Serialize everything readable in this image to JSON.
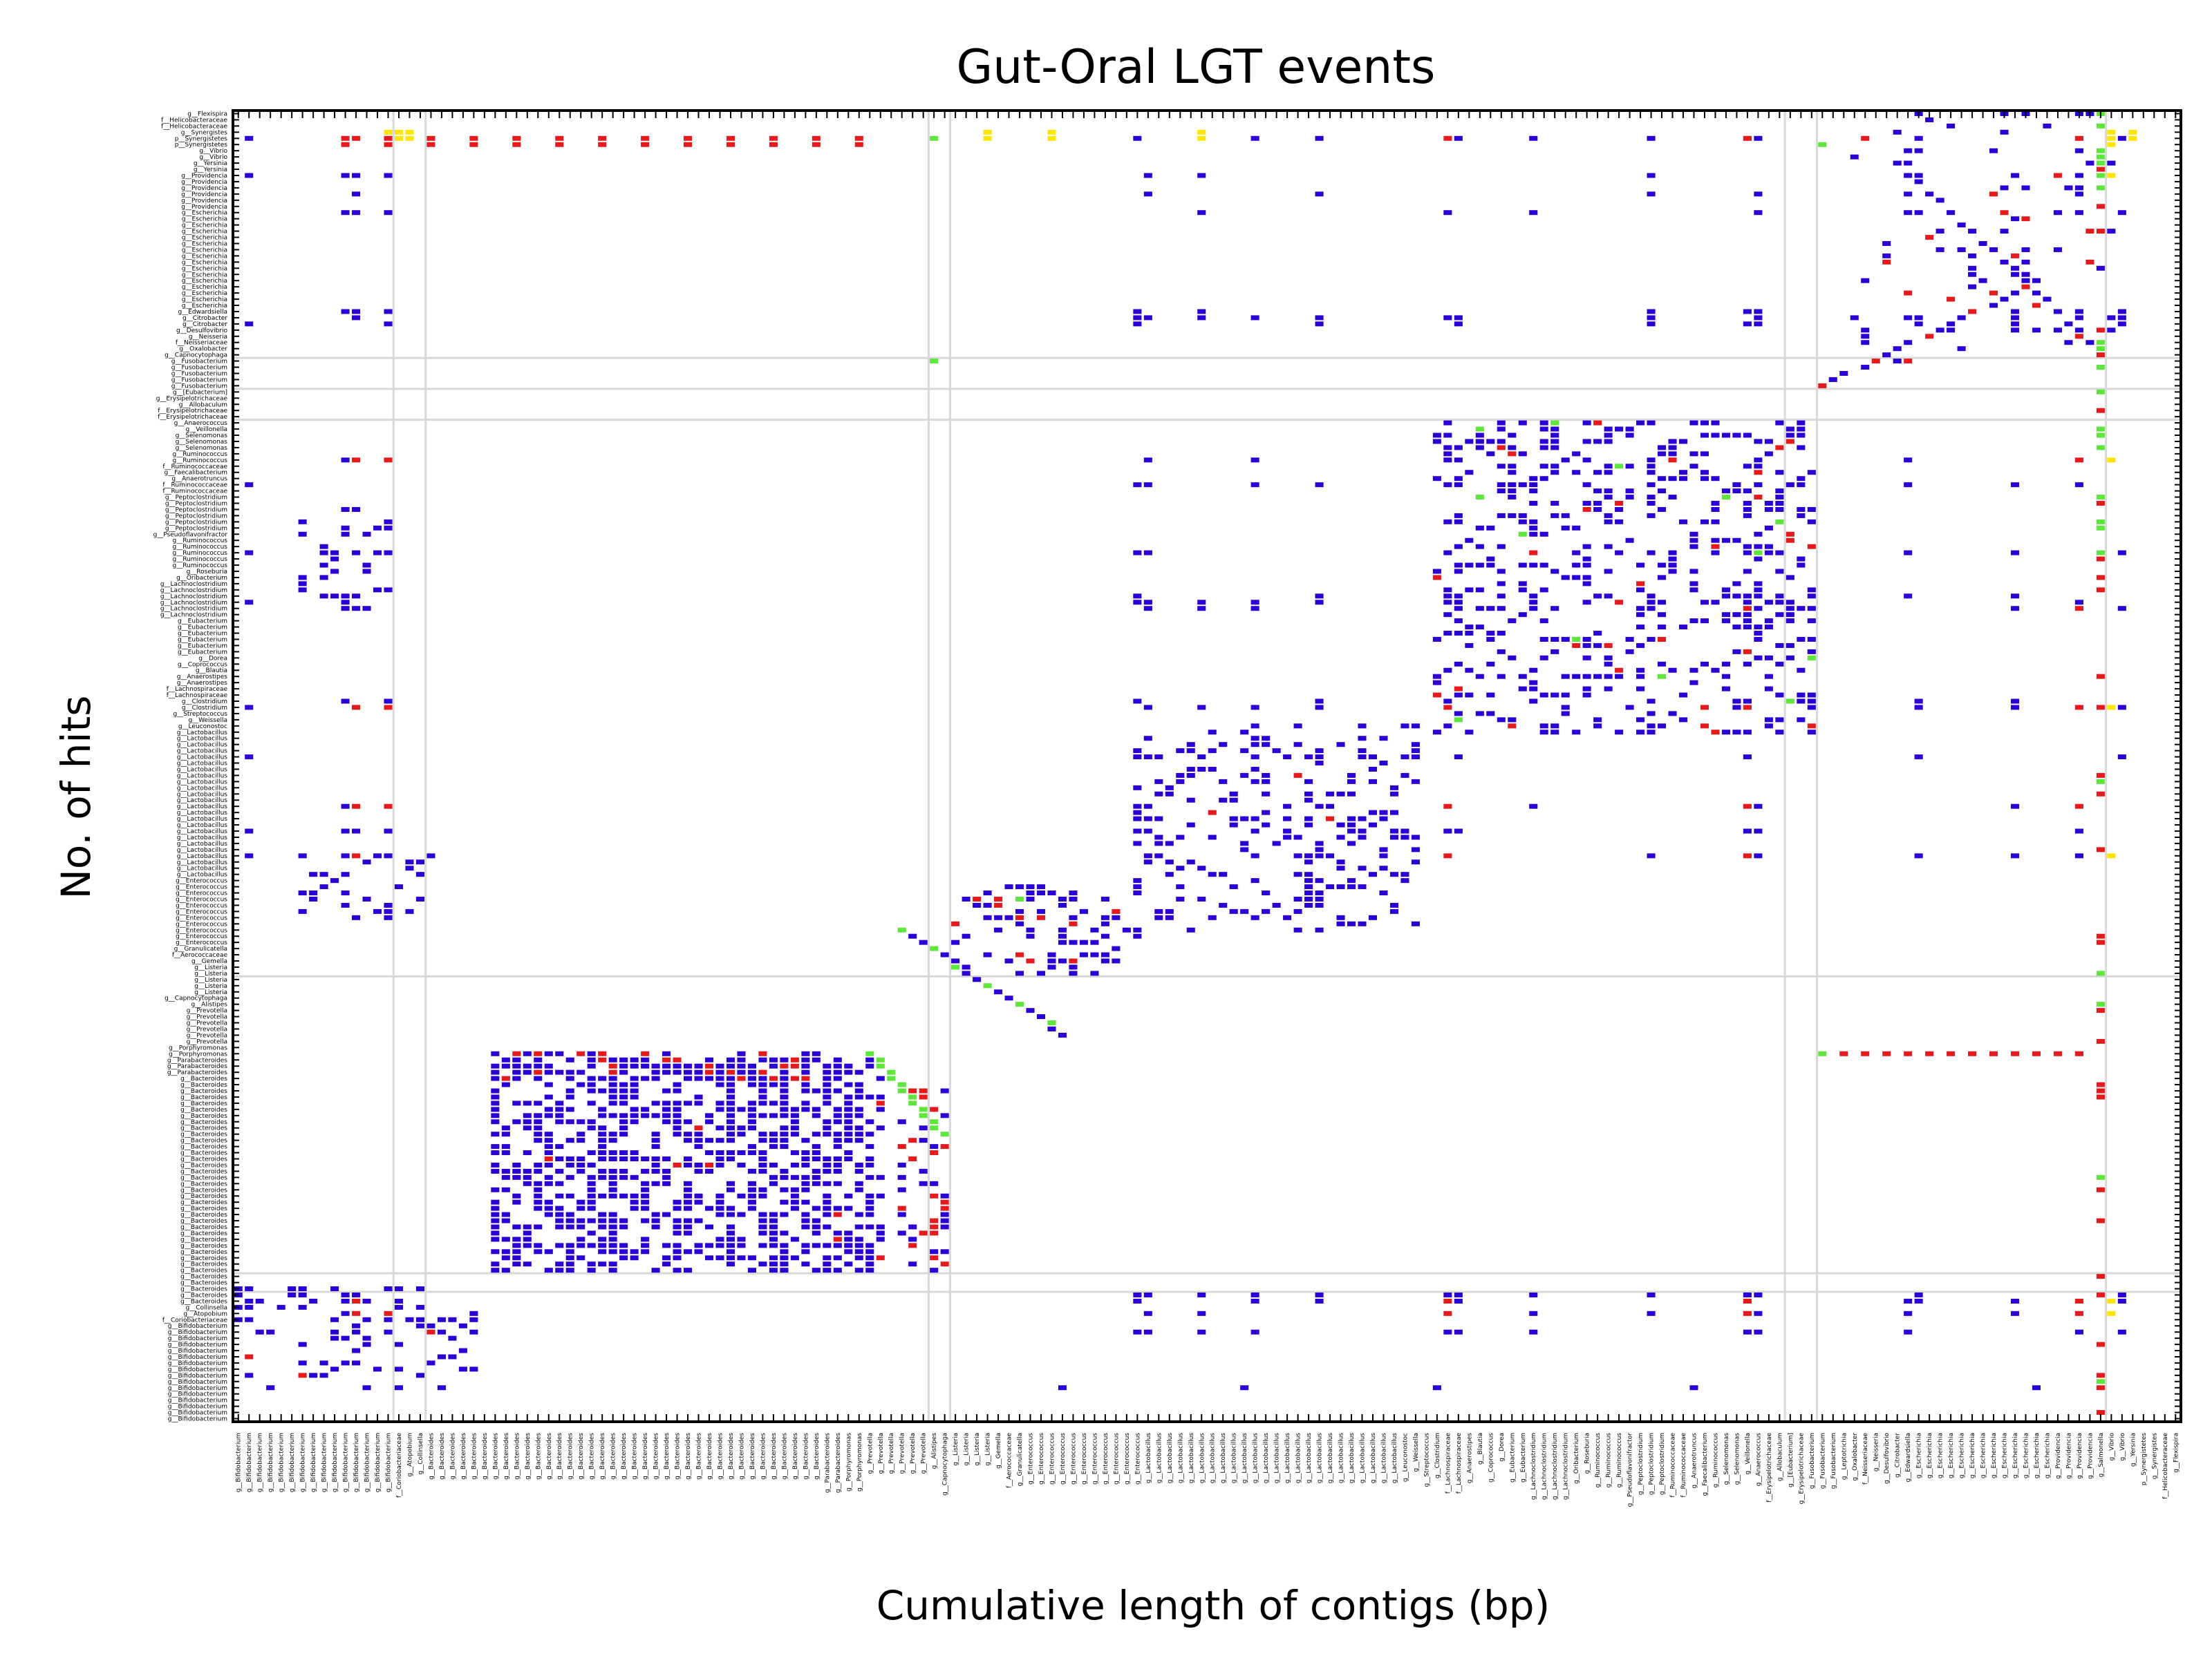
{
  "chart_data": {
    "type": "scatter",
    "title": "Gut-Oral LGT events",
    "xlabel": "Cumulative length of contigs (bp)",
    "ylabel": "No. of hits",
    "grid": true,
    "colors": {
      "blue": "#2a00d4",
      "red": "#e41a1c",
      "green": "#5ee63c",
      "yellow": "#ffe600",
      "grid": "#d8d8d8",
      "frame": "#000000"
    },
    "row_labels": [
      "g__Flexispira",
      "f__Helicobacteraceae",
      "f__Helicobacteraceae",
      "g__Synergistes",
      "p__Synergistetes",
      "p__Synergistetes",
      "g__Vibrio",
      "g__Vibrio",
      "g__Yersinia",
      "g__Yersinia",
      "g__Providencia",
      "g__Providencia",
      "g__Providencia",
      "g__Providencia",
      "g__Providencia",
      "g__Providencia",
      "g__Escherichia",
      "g__Escherichia",
      "g__Escherichia",
      "g__Escherichia",
      "g__Escherichia",
      "g__Escherichia",
      "g__Escherichia",
      "g__Escherichia",
      "g__Escherichia",
      "g__Escherichia",
      "g__Escherichia",
      "g__Escherichia",
      "g__Escherichia",
      "g__Escherichia",
      "g__Escherichia",
      "g__Escherichia",
      "g__Edwardsiella",
      "g__Citrobacter",
      "g__Citrobacter",
      "g__Desulfovibrio",
      "g__Neisseria",
      "f__Neisseriaceae",
      "g__Oxalobacter",
      "g__Capnocytophaga",
      "g__Fusobacterium",
      "g__Fusobacterium",
      "g__Fusobacterium",
      "g__Fusobacterium",
      "g__Fusobacterium",
      "g__[Eubacterium]",
      "g__Erysipelotrichaceae",
      "g__Allobaculum",
      "f__Erysipelotrichaceae",
      "f__Erysipelotrichaceae",
      "g__Anaerococcus",
      "g__Veillonella",
      "g__Selenomonas",
      "g__Selenomonas",
      "g__Selenomonas",
      "g__Ruminococcus",
      "g__Ruminococcus",
      "f__Ruminococcaceae",
      "g__Faecalibacterium",
      "g__Anaerotruncus",
      "f__Ruminococcaceae",
      "f__Ruminococcaceae",
      "g__Peptoclostridium",
      "g__Peptoclostridium",
      "g__Peptoclostridium",
      "g__Peptoclostridium",
      "g__Peptoclostridium",
      "g__Peptoclostridium",
      "g__Pseudoflavonifractor",
      "g__Ruminococcus",
      "g__Ruminococcus",
      "g__Ruminococcus",
      "g__Ruminococcus",
      "g__Ruminococcus",
      "g__Roseburia",
      "g__Oribacterium",
      "g__Lachnoclostridium",
      "g__Lachnoclostridium",
      "g__Lachnoclostridium",
      "g__Lachnoclostridium",
      "g__Lachnoclostridium",
      "g__Lachnoclostridium",
      "g__Eubacterium",
      "g__Eubacterium",
      "g__Eubacterium",
      "g__Eubacterium",
      "g__Eubacterium",
      "g__Eubacterium",
      "g__Dorea",
      "g__Coprococcus",
      "g__Blautia",
      "g__Anaerostipes",
      "g__Anaerostipes",
      "f__Lachnospiraceae",
      "f__Lachnospiraceae",
      "g__Clostridium",
      "g__Clostridium",
      "g__Streptococcus",
      "g__Weissella",
      "g__Leuconostoc",
      "g__Lactobacillus",
      "g__Lactobacillus",
      "g__Lactobacillus",
      "g__Lactobacillus",
      "g__Lactobacillus",
      "g__Lactobacillus",
      "g__Lactobacillus",
      "g__Lactobacillus",
      "g__Lactobacillus",
      "g__Lactobacillus",
      "g__Lactobacillus",
      "g__Lactobacillus",
      "g__Lactobacillus",
      "g__Lactobacillus",
      "g__Lactobacillus",
      "g__Lactobacillus",
      "g__Lactobacillus",
      "g__Lactobacillus",
      "g__Lactobacillus",
      "g__Lactobacillus",
      "g__Lactobacillus",
      "g__Lactobacillus",
      "g__Lactobacillus",
      "g__Lactobacillus",
      "g__Enterococcus",
      "g__Enterococcus",
      "g__Enterococcus",
      "g__Enterococcus",
      "g__Enterococcus",
      "g__Enterococcus",
      "g__Enterococcus",
      "g__Enterococcus",
      "g__Enterococcus",
      "g__Enterococcus",
      "g__Enterococcus",
      "g__Granulicatella",
      "f__Aerococcaceae",
      "g__Gemella",
      "g__Listeria",
      "g__Listeria",
      "g__Listeria",
      "g__Listeria",
      "g__Listeria",
      "g__Capnocytophaga",
      "g__Alistipes",
      "g__Prevotella",
      "g__Prevotella",
      "g__Prevotella",
      "g__Prevotella",
      "g__Prevotella",
      "g__Prevotella",
      "g__Porphyromonas",
      "g__Porphyromonas",
      "g__Parabacteroides",
      "g__Parabacteroides",
      "g__Parabacteroides",
      "g__Bacteroides",
      "g__Bacteroides",
      "g__Bacteroides",
      "g__Bacteroides",
      "g__Bacteroides",
      "g__Bacteroides",
      "g__Bacteroides",
      "g__Bacteroides",
      "g__Bacteroides",
      "g__Bacteroides",
      "g__Bacteroides",
      "g__Bacteroides",
      "g__Bacteroides",
      "g__Bacteroides",
      "g__Bacteroides",
      "g__Bacteroides",
      "g__Bacteroides",
      "g__Bacteroides",
      "g__Bacteroides",
      "g__Bacteroides",
      "g__Bacteroides",
      "g__Bacteroides",
      "g__Bacteroides",
      "g__Bacteroides",
      "g__Bacteroides",
      "g__Bacteroides",
      "g__Bacteroides",
      "g__Bacteroides",
      "g__Bacteroides",
      "g__Bacteroides",
      "g__Bacteroides",
      "g__Bacteroides",
      "g__Bacteroides",
      "g__Bacteroides",
      "g__Bacteroides",
      "g__Bacteroides",
      "g__Bacteroides",
      "g__Collinsella",
      "g__Atopobium",
      "f__Coriobacteriaceae",
      "g__Bifidobacterium",
      "g__Bifidobacterium",
      "g__Bifidobacterium",
      "g__Bifidobacterium",
      "g__Bifidobacterium",
      "g__Bifidobacterium",
      "g__Bifidobacterium",
      "g__Bifidobacterium",
      "g__Bifidobacterium",
      "g__Bifidobacterium",
      "g__Bifidobacterium",
      "g__Bifidobacterium",
      "g__Bifidobacterium",
      "g__Bifidobacterium",
      "g__Bifidobacterium",
      "g__Bifidobacterium"
    ],
    "col_labels": [
      "g__Bifidobacterium",
      "g__Bifidobacterium",
      "g__Bifidobacterium",
      "g__Bifidobacterium",
      "g__Bifidobacterium",
      "g__Bifidobacterium",
      "g__Bifidobacterium",
      "g__Bifidobacterium",
      "g__Bifidobacterium",
      "g__Bifidobacterium",
      "g__Bifidobacterium",
      "g__Bifidobacterium",
      "g__Bifidobacterium",
      "g__Bifidobacterium",
      "g__Bifidobacterium",
      "f__Coriobacteriaceae",
      "g__Atopobium",
      "g__Collinsella",
      "g__Bacteroides",
      "g__Bacteroides",
      "g__Bacteroides",
      "g__Bacteroides",
      "g__Bacteroides",
      "g__Bacteroides",
      "g__Bacteroides",
      "g__Bacteroides",
      "g__Bacteroides",
      "g__Bacteroides",
      "g__Bacteroides",
      "g__Bacteroides",
      "g__Bacteroides",
      "g__Bacteroides",
      "g__Bacteroides",
      "g__Bacteroides",
      "g__Bacteroides",
      "g__Bacteroides",
      "g__Bacteroides",
      "g__Bacteroides",
      "g__Bacteroides",
      "g__Bacteroides",
      "g__Bacteroides",
      "g__Bacteroides",
      "g__Bacteroides",
      "g__Bacteroides",
      "g__Bacteroides",
      "g__Bacteroides",
      "g__Bacteroides",
      "g__Bacteroides",
      "g__Bacteroides",
      "g__Bacteroides",
      "g__Bacteroides",
      "g__Bacteroides",
      "g__Bacteroides",
      "g__Bacteroides",
      "g__Bacteroides",
      "g__Parabacteroides",
      "g__Parabacteroides",
      "g__Porphyromonas",
      "g__Porphyromonas",
      "g__Prevotella",
      "g__Prevotella",
      "g__Prevotella",
      "g__Prevotella",
      "g__Prevotella",
      "g__Prevotella",
      "g__Alistipes",
      "g__Capnocytophaga",
      "g__Listeria",
      "g__Listeria",
      "g__Listeria",
      "g__Listeria",
      "g__Gemella",
      "f__Aerococcaceae",
      "g__Granulicatella",
      "g__Enterococcus",
      "g__Enterococcus",
      "g__Enterococcus",
      "g__Enterococcus",
      "g__Enterococcus",
      "g__Enterococcus",
      "g__Enterococcus",
      "g__Enterococcus",
      "g__Enterococcus",
      "g__Enterococcus",
      "g__Enterococcus",
      "g__Lactobacillus",
      "g__Lactobacillus",
      "g__Lactobacillus",
      "g__Lactobacillus",
      "g__Lactobacillus",
      "g__Lactobacillus",
      "g__Lactobacillus",
      "g__Lactobacillus",
      "g__Lactobacillus",
      "g__Lactobacillus",
      "g__Lactobacillus",
      "g__Lactobacillus",
      "g__Lactobacillus",
      "g__Lactobacillus",
      "g__Lactobacillus",
      "g__Lactobacillus",
      "g__Lactobacillus",
      "g__Lactobacillus",
      "g__Lactobacillus",
      "g__Lactobacillus",
      "g__Lactobacillus",
      "g__Lactobacillus",
      "g__Lactobacillus",
      "g__Lactobacillus",
      "g__Leuconostoc",
      "g__Weissella",
      "g__Streptococcus",
      "g__Clostridium",
      "f__Lachnospiraceae",
      "f__Lachnospiraceae",
      "g__Anaerostipes",
      "g__Blautia",
      "g__Coprococcus",
      "g__Dorea",
      "g__Eubacterium",
      "g__Eubacterium",
      "g__Lachnoclostridium",
      "g__Lachnoclostridium",
      "g__Lachnoclostridium",
      "g__Lachnoclostridium",
      "g__Oribacterium",
      "g__Roseburia",
      "g__Ruminococcus",
      "g__Ruminococcus",
      "g__Ruminococcus",
      "g__Pseudoflavonifractor",
      "g__Peptoclostridium",
      "g__Peptoclostridium",
      "g__Peptoclostridium",
      "f__Ruminococcaceae",
      "f__Ruminococcaceae",
      "g__Anaerotruncus",
      "g__Faecalibacterium",
      "g__Ruminococcus",
      "g__Selenomonas",
      "g__Selenomonas",
      "g__Veillonella",
      "g__Anaerococcus",
      "f__Erysipelotrichaceae",
      "g__Allobaculum",
      "g__[Eubacterium]",
      "g__Erysipelotrichaceae",
      "g__Fusobacterium",
      "g__Fusobacterium",
      "g__Fusobacterium",
      "g__Leptotrichia",
      "g__Oxalobacter",
      "f__Neisseriaceae",
      "g__Neisseria",
      "g__Desulfovibrio",
      "g__Citrobacter",
      "g__Edwardsiella",
      "g__Escherichia",
      "g__Escherichia",
      "g__Escherichia",
      "g__Escherichia",
      "g__Escherichia",
      "g__Escherichia",
      "g__Escherichia",
      "g__Escherichia",
      "g__Escherichia",
      "g__Escherichia",
      "g__Escherichia",
      "g__Escherichia",
      "g__Escherichia",
      "g__Providencia",
      "g__Providencia",
      "g__Providencia",
      "g__Providencia",
      "g__Salmonella",
      "g__Vibrio",
      "g__Vibrio",
      "g__Yersinia",
      "p__Synergistetes",
      "g__Synergistes",
      "f__Helicobacteraceae",
      "g__Flexispira"
    ]
  }
}
